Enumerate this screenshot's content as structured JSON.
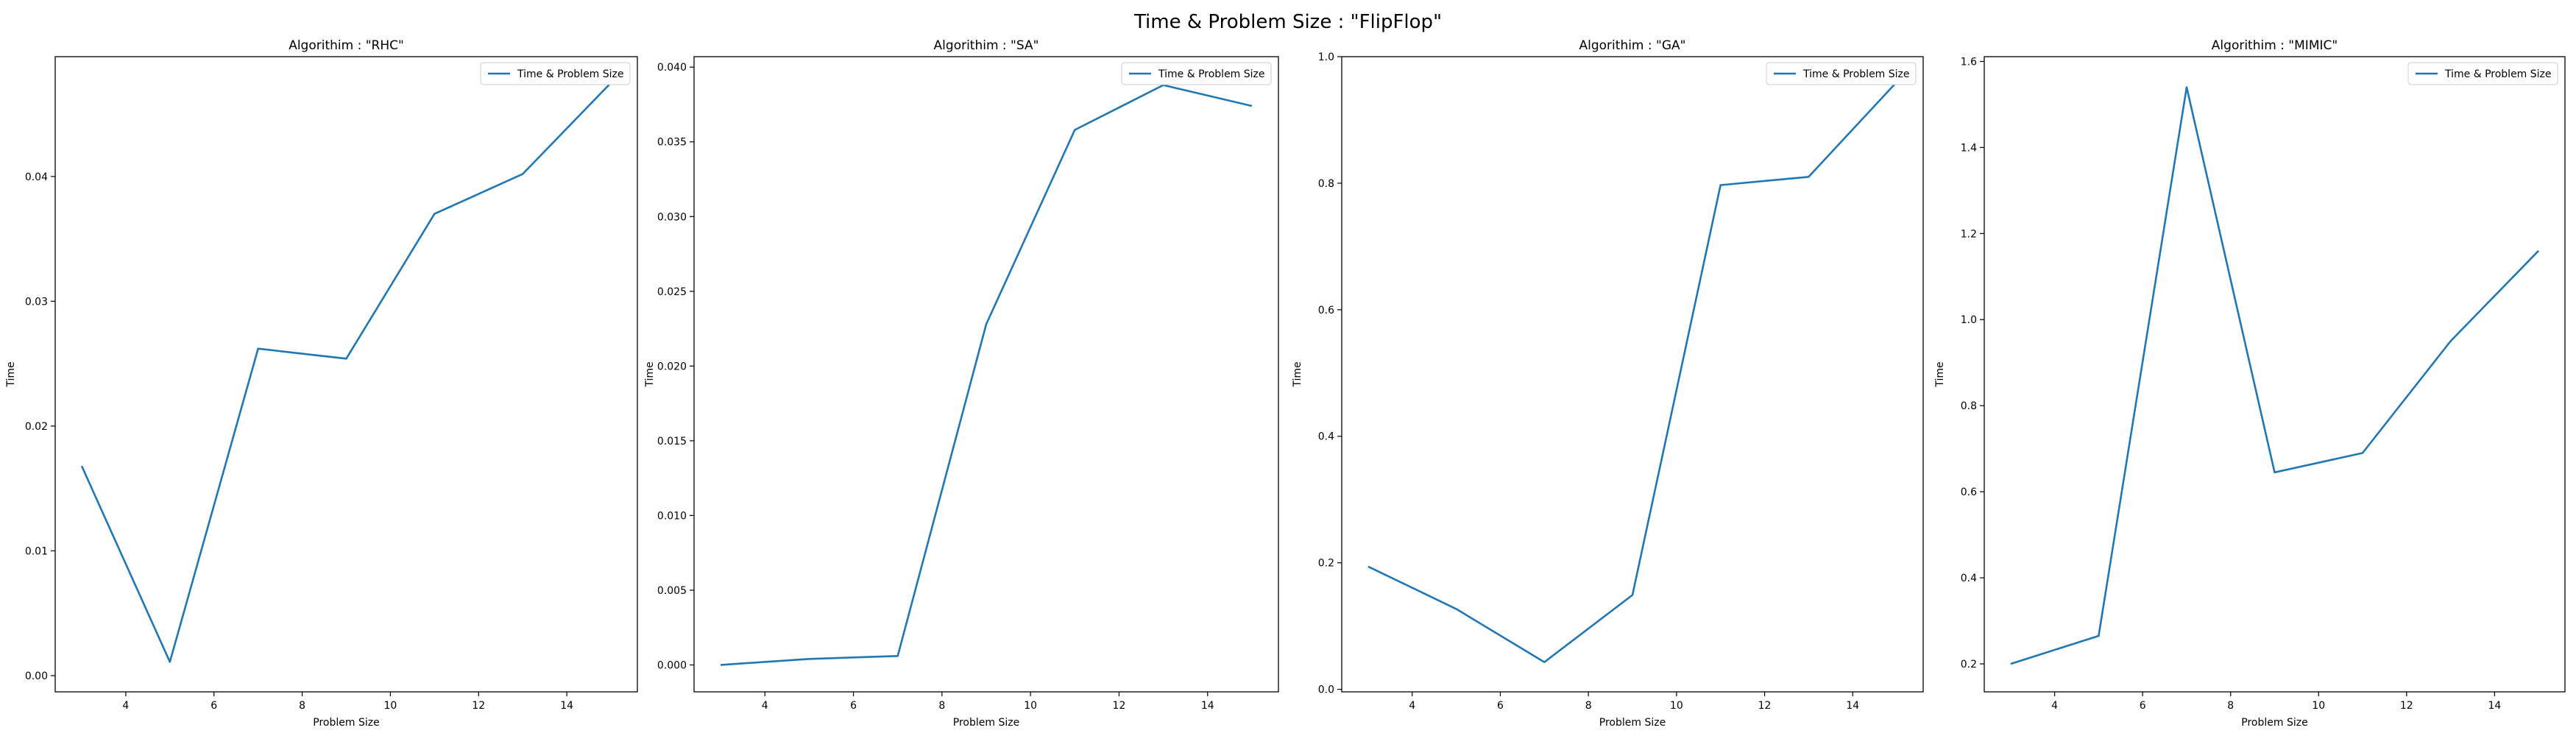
{
  "figure": {
    "suptitle": "Time & Problem Size : \"FlipFlop\""
  },
  "chart_data": [
    {
      "type": "line",
      "title": "Algorithim : \"RHC\"",
      "xlabel": "Problem Size",
      "ylabel": "Time",
      "legend": {
        "entries": [
          "Time & Problem Size"
        ],
        "placement": "top-right"
      },
      "grid": false,
      "xlim": [
        2.4,
        15.6
      ],
      "ylim": [
        -0.0013,
        0.0496
      ],
      "xticks": [
        4,
        6,
        8,
        10,
        12,
        14
      ],
      "yticks": [
        0.0,
        0.01,
        0.02,
        0.03,
        0.04
      ],
      "ytick_decimals": 2,
      "color": "#1f77b4",
      "series": [
        {
          "name": "Time & Problem Size",
          "x": [
            3,
            5,
            7,
            9,
            11,
            13,
            15
          ],
          "y": [
            0.0168,
            0.0011,
            0.0262,
            0.0254,
            0.037,
            0.0402,
            0.0475
          ]
        }
      ]
    },
    {
      "type": "line",
      "title": "Algorithim : \"SA\"",
      "xlabel": "Problem Size",
      "ylabel": "Time",
      "legend": {
        "entries": [
          "Time & Problem Size"
        ],
        "placement": "top-right"
      },
      "grid": false,
      "xlim": [
        2.4,
        15.6
      ],
      "ylim": [
        -0.0018,
        0.0407
      ],
      "xticks": [
        4,
        6,
        8,
        10,
        12,
        14
      ],
      "yticks": [
        0.0,
        0.005,
        0.01,
        0.015,
        0.02,
        0.025,
        0.03,
        0.035,
        0.04
      ],
      "ytick_decimals": 3,
      "color": "#1f77b4",
      "series": [
        {
          "name": "Time & Problem Size",
          "x": [
            3,
            5,
            7,
            9,
            11,
            13,
            15
          ],
          "y": [
            0.0,
            0.0004,
            0.0006,
            0.0228,
            0.0358,
            0.0388,
            0.0374
          ]
        }
      ]
    },
    {
      "type": "line",
      "title": "Algorithim : \"GA\"",
      "xlabel": "Problem Size",
      "ylabel": "Time",
      "legend": {
        "entries": [
          "Time & Problem Size"
        ],
        "placement": "top-right"
      },
      "grid": false,
      "xlim": [
        2.4,
        15.6
      ],
      "ylim": [
        -0.004,
        1.0
      ],
      "xticks": [
        4,
        6,
        8,
        10,
        12,
        14
      ],
      "yticks": [
        0.0,
        0.2,
        0.4,
        0.6,
        0.8,
        1.0
      ],
      "ytick_decimals": 1,
      "color": "#1f77b4",
      "series": [
        {
          "name": "Time & Problem Size",
          "x": [
            3,
            5,
            7,
            9,
            11,
            13,
            15
          ],
          "y": [
            0.194,
            0.127,
            0.043,
            0.149,
            0.797,
            0.81,
            0.96
          ]
        }
      ]
    },
    {
      "type": "line",
      "title": "Algorithim : \"MIMIC\"",
      "xlabel": "Problem Size",
      "ylabel": "Time",
      "legend": {
        "entries": [
          "Time & Problem Size"
        ],
        "placement": "top-right"
      },
      "grid": false,
      "xlim": [
        2.4,
        15.6
      ],
      "ylim": [
        0.135,
        1.611
      ],
      "xticks": [
        4,
        6,
        8,
        10,
        12,
        14
      ],
      "yticks": [
        0.2,
        0.4,
        0.6,
        0.8,
        1.0,
        1.2,
        1.4,
        1.6
      ],
      "ytick_decimals": 1,
      "color": "#1f77b4",
      "series": [
        {
          "name": "Time & Problem Size",
          "x": [
            3,
            5,
            7,
            9,
            11,
            13,
            15
          ],
          "y": [
            0.2,
            0.265,
            1.54,
            0.645,
            0.69,
            0.95,
            1.16
          ]
        }
      ]
    }
  ]
}
